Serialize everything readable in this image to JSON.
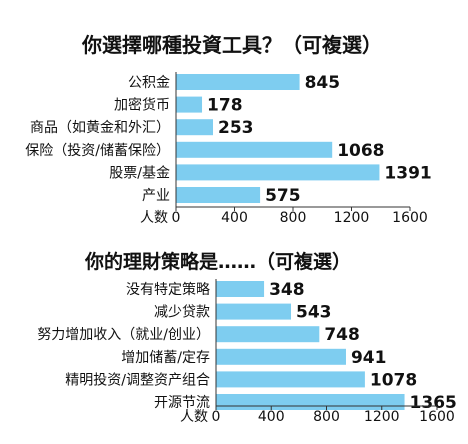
{
  "colors": {
    "bar": "#7ecdf0",
    "text": "#111111",
    "axis": "#333333"
  },
  "chart_data": [
    {
      "type": "bar",
      "orientation": "horizontal",
      "title": "你選擇哪種投資工具？（可複選）",
      "xlabel": "人数",
      "ylabel": "",
      "categories": [
        "公积金",
        "加密货币",
        "商品（如黄金和外汇）",
        "保险（投资/储蓄保险）",
        "股票/基金",
        "产业"
      ],
      "values": [
        845,
        178,
        253,
        1068,
        1391,
        575
      ],
      "xlim": [
        0,
        1600
      ],
      "ticks": [
        0,
        400,
        800,
        1200,
        1600
      ],
      "grid": false,
      "legend": "none"
    },
    {
      "type": "bar",
      "orientation": "horizontal",
      "title": "你的理財策略是……（可複選）",
      "xlabel": "人数",
      "ylabel": "",
      "categories": [
        "没有特定策略",
        "减少贷款",
        "努力增加收入（就业/创业）",
        "增加储蓄/定存",
        "精明投资/调整资产组合",
        "开源节流"
      ],
      "values": [
        348,
        543,
        748,
        941,
        1078,
        1365
      ],
      "xlim": [
        0,
        1600
      ],
      "ticks": [
        0,
        400,
        800,
        1200,
        1600
      ],
      "grid": false,
      "legend": "none"
    }
  ]
}
